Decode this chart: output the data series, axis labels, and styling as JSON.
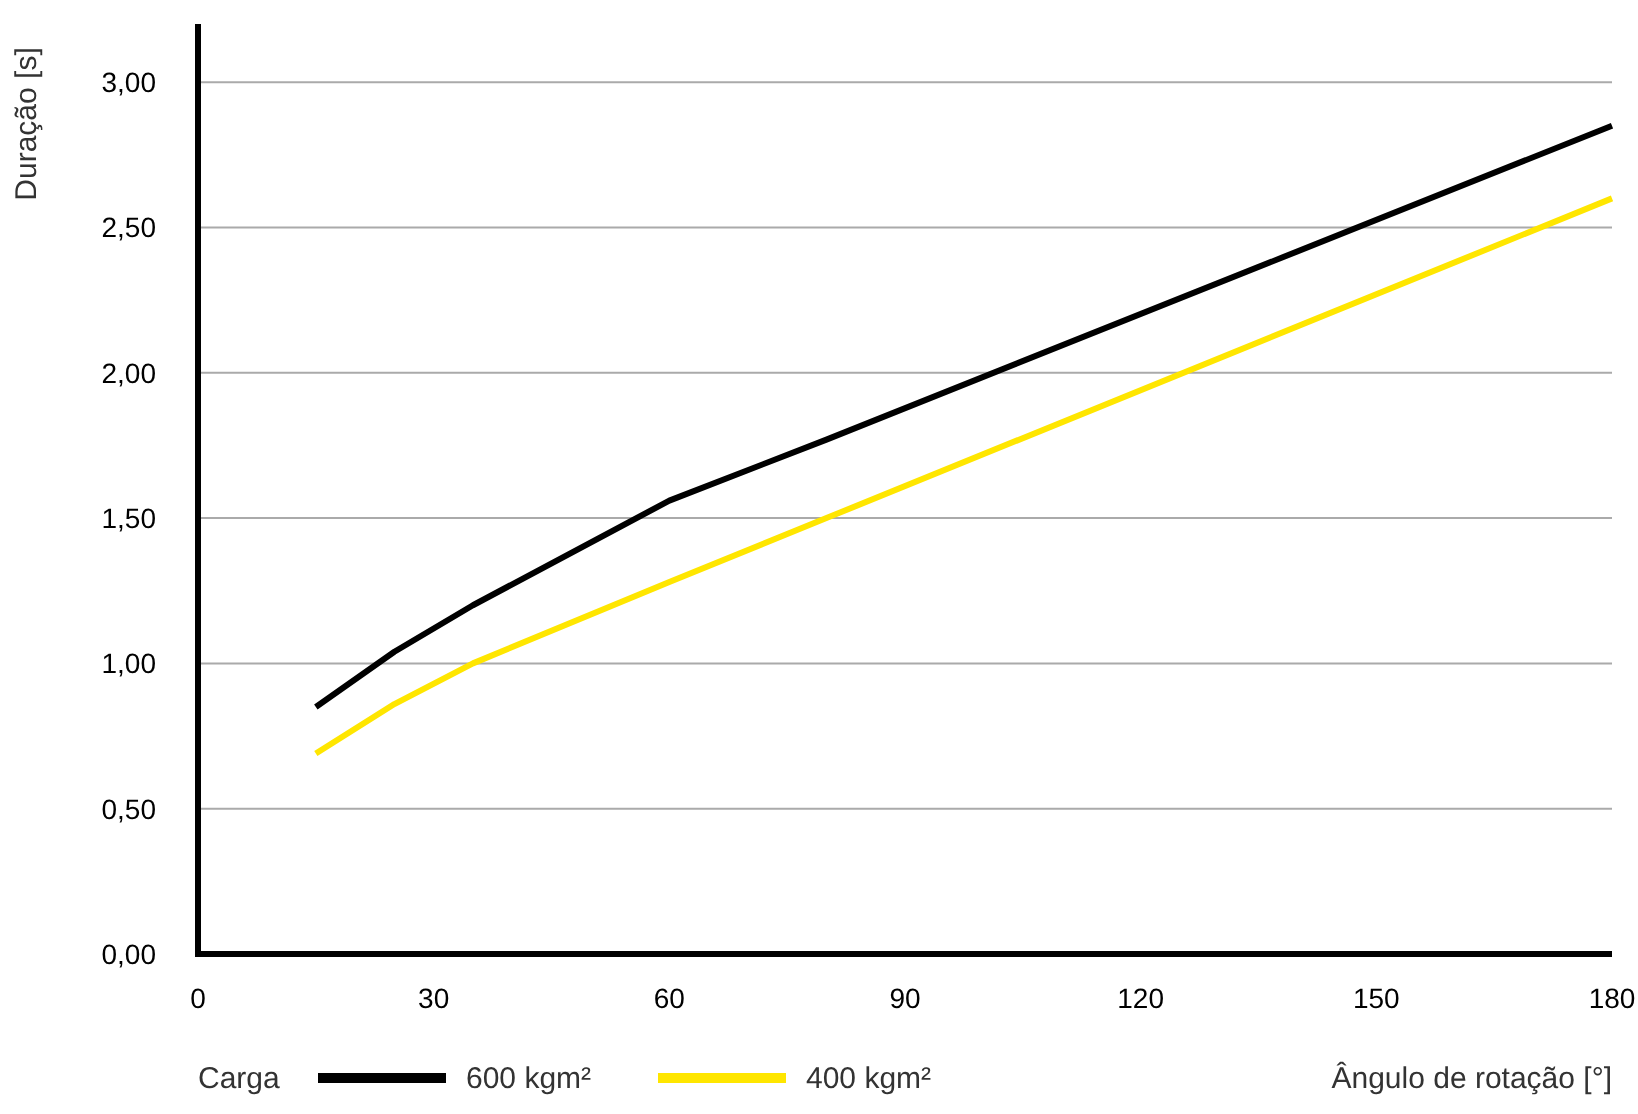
{
  "chart_data": {
    "type": "line",
    "ylabel": "Duração [s]",
    "xlabel": "Ângulo de rotação [°]",
    "legend_title": "Carga",
    "legend": "bottom",
    "grid": "y",
    "marker": "none",
    "line_style": "solid",
    "xlim": [
      0,
      180
    ],
    "xticks": [
      0,
      30,
      60,
      90,
      120,
      150,
      180
    ],
    "ylim": [
      0,
      3.2
    ],
    "yticks": [
      {
        "value": 0,
        "label": "0,00"
      },
      {
        "value": 0.5,
        "label": "0,50"
      },
      {
        "value": 1,
        "label": "1,00"
      },
      {
        "value": 1.5,
        "label": "1,50"
      },
      {
        "value": 2,
        "label": "2,00"
      },
      {
        "value": 2.5,
        "label": "2,50"
      },
      {
        "value": 3,
        "label": "3,00"
      }
    ],
    "x": [
      15,
      25,
      35,
      60,
      80,
      180
    ],
    "series": [
      {
        "name": "600 kgm²",
        "color": "#000000",
        "values": [
          0.85,
          1.04,
          1.2,
          1.56,
          1.77,
          2.85
        ]
      },
      {
        "name": "400 kgm²",
        "color": "#ffe600",
        "values": [
          0.69,
          0.86,
          1.0,
          1.28,
          1.5,
          2.6
        ]
      }
    ]
  }
}
